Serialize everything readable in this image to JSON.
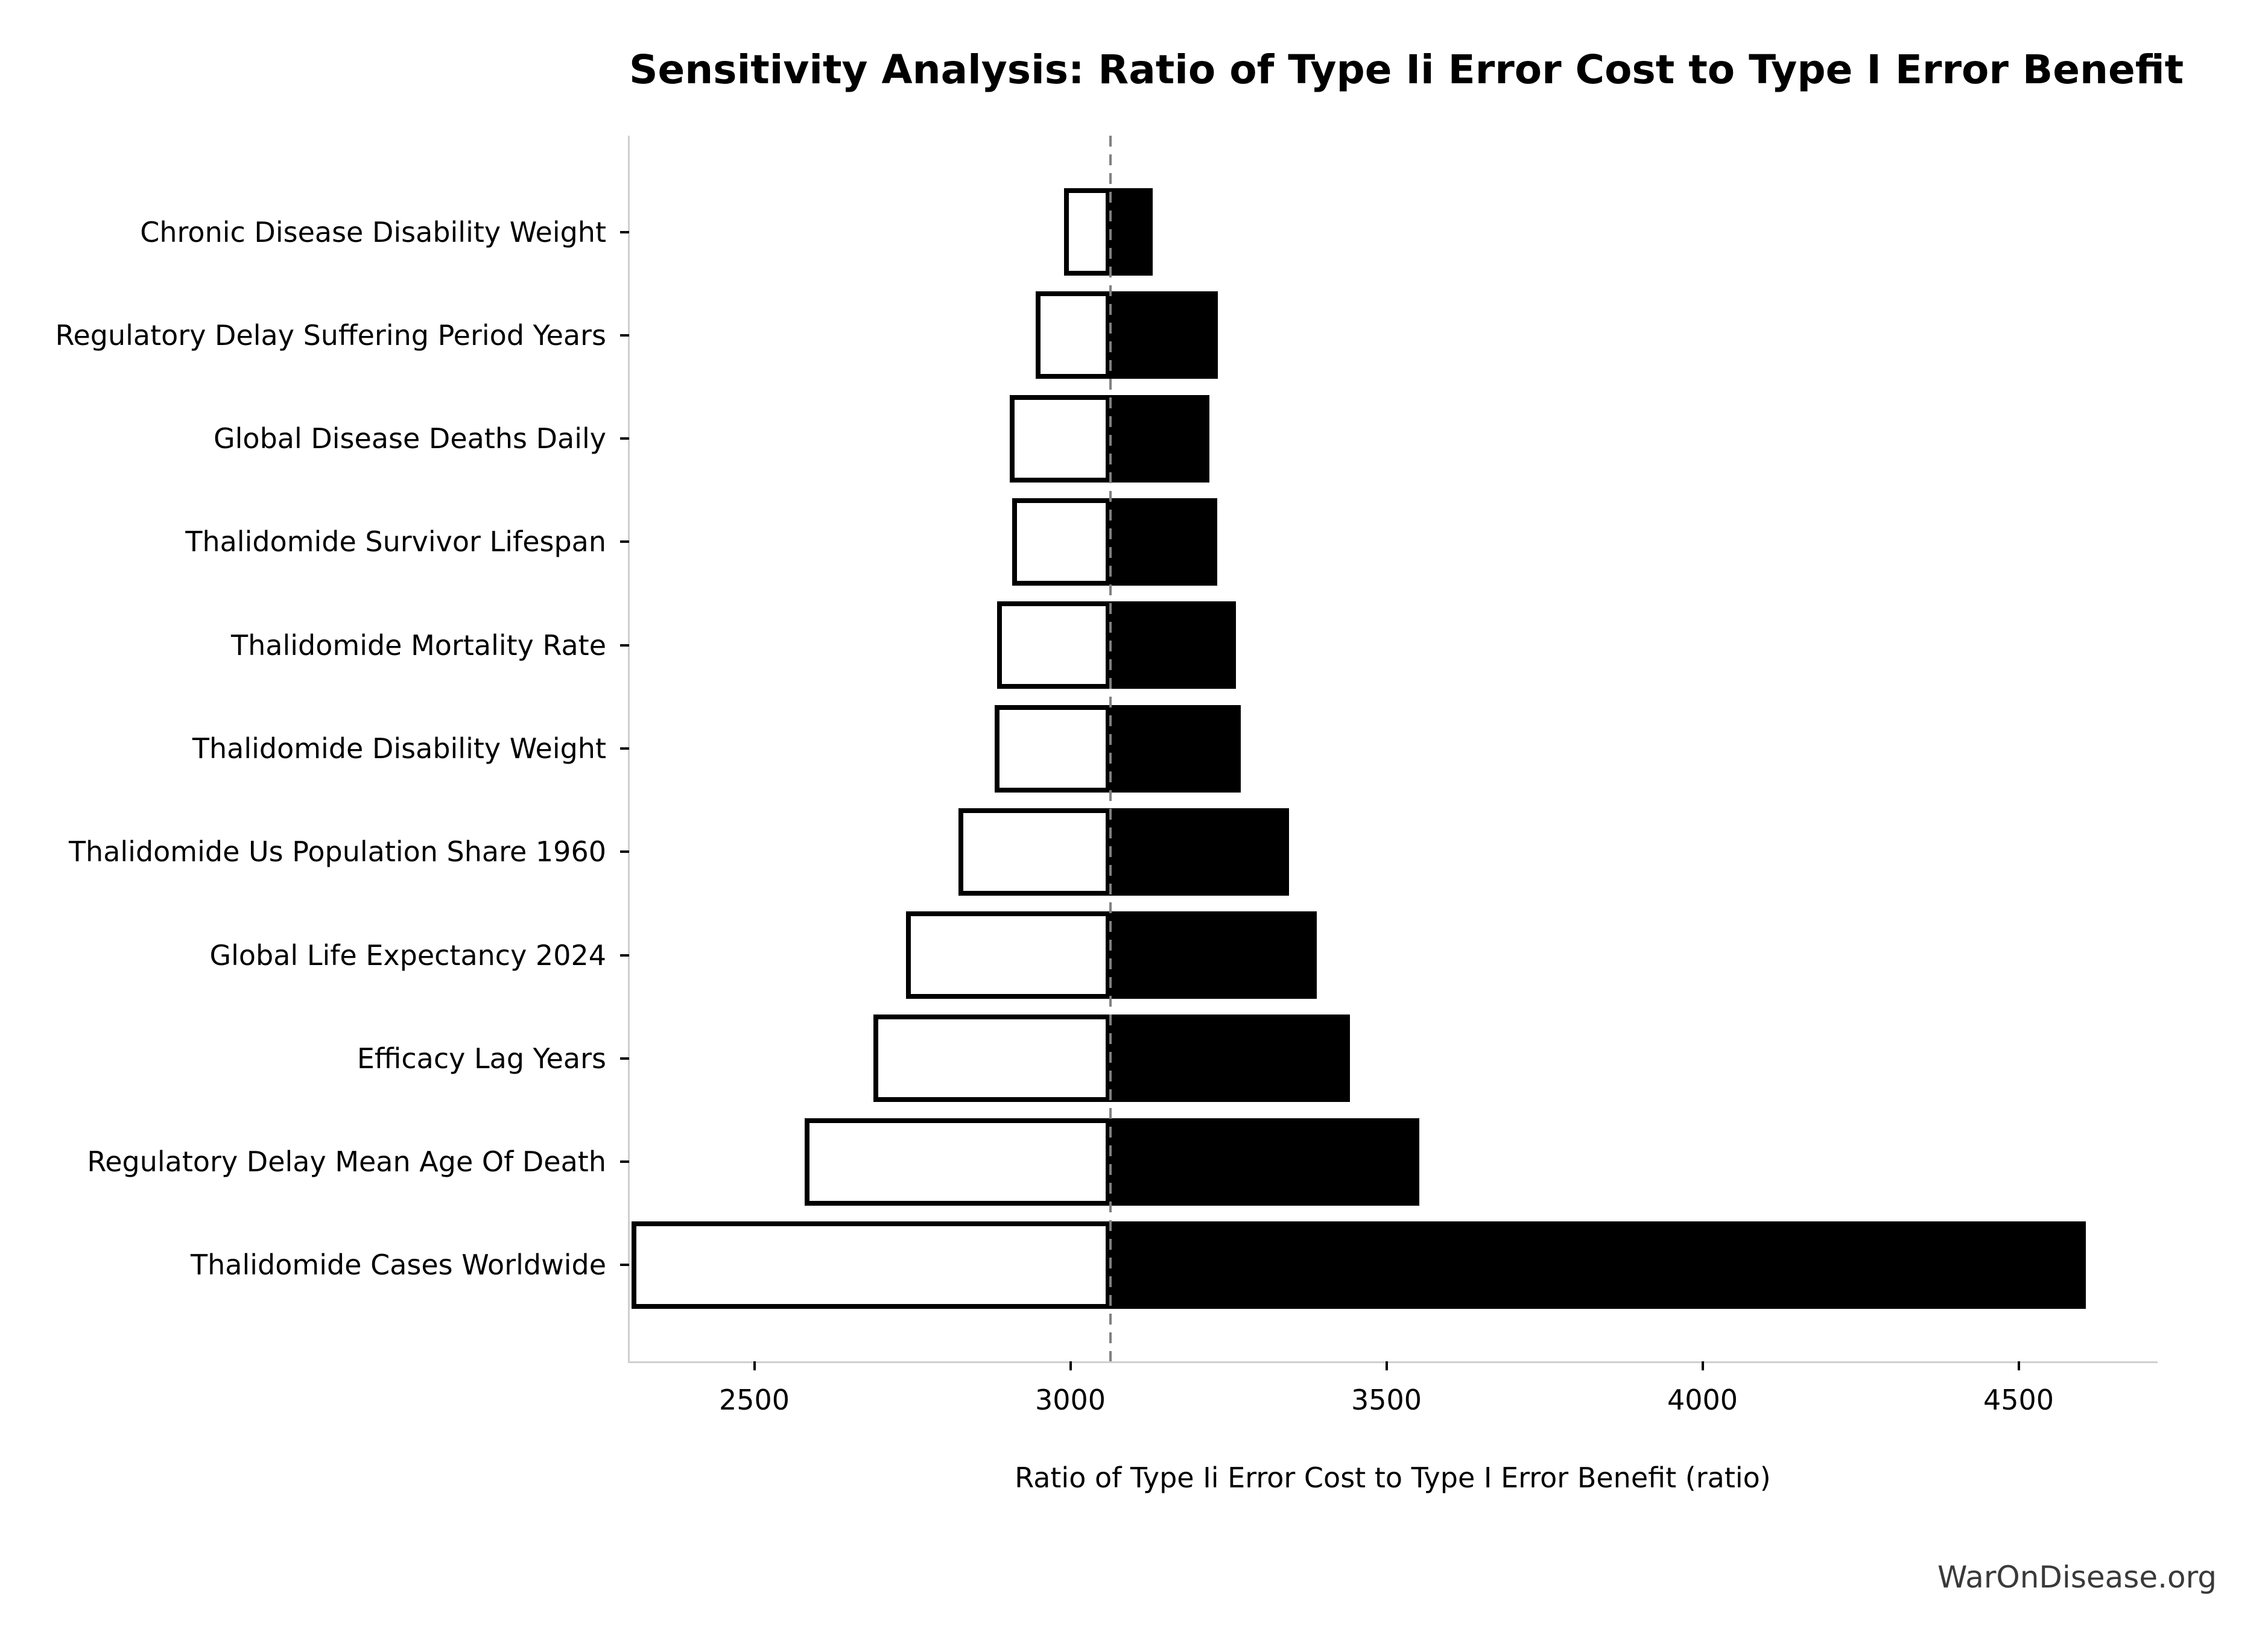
{
  "title": "Sensitivity Analysis: Ratio of Type Ii Error Cost to Type I Error Benefit",
  "watermark": "WarOnDisease.org",
  "chart_data": {
    "type": "bar",
    "subtype": "tornado-sensitivity",
    "orientation": "horizontal",
    "title": "Sensitivity Analysis: Ratio of Type Ii Error Cost to Type I Error Benefit",
    "xlabel": "Ratio of Type Ii Error Cost to Type I Error Benefit (ratio)",
    "ylabel": "",
    "base_value": 3063,
    "xlim": [
      2302,
      4718
    ],
    "x_ticks": [
      2500,
      3000,
      3500,
      4000,
      4500
    ],
    "grid": false,
    "legend_position": "none",
    "categories": [
      "Chronic Disease Disability Weight",
      "Regulatory Delay Suffering Period Years",
      "Global Disease Deaths Daily",
      "Thalidomide Survivor Lifespan",
      "Thalidomide Mortality Rate",
      "Thalidomide Disability Weight",
      "Thalidomide Us Population Share 1960",
      "Global Life Expectancy 2024",
      "Efficacy Lag Years",
      "Regulatory Delay Mean Age Of Death",
      "Thalidomide Cases Worldwide"
    ],
    "series": [
      {
        "name": "Low (white bar, left of baseline)",
        "values": [
          2990,
          2945,
          2904,
          2908,
          2884,
          2880,
          2823,
          2740,
          2688,
          2580,
          2306
        ]
      },
      {
        "name": "High (black bar, right of baseline)",
        "values": [
          3130,
          3233,
          3220,
          3232,
          3262,
          3270,
          3346,
          3390,
          3442,
          3552,
          4606
        ]
      }
    ],
    "colors": {
      "low_fill": "#ffffff",
      "low_edge": "#000000",
      "high_fill": "#000000",
      "baseline": "#808080",
      "spine": "#cfcfcf",
      "tick": "#000000",
      "text": "#000000",
      "watermark_text": "#3a3a3a",
      "background": "#ffffff"
    }
  }
}
